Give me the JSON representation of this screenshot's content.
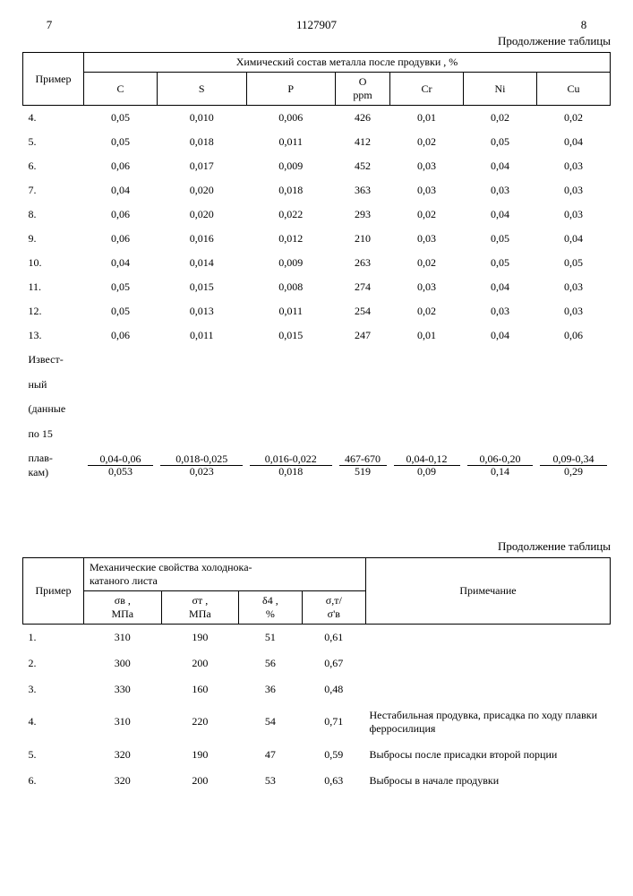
{
  "doc": {
    "page_left": "7",
    "doc_number": "1127907",
    "page_right": "8",
    "continuation": "Продолжение таблицы"
  },
  "table1": {
    "col_primer": "Пример",
    "group_header": "Химический состав металла после продувки , %",
    "cols": {
      "c": "C",
      "s": "S",
      "p": "P",
      "o": "O\nppm",
      "cr": "Cr",
      "ni": "Ni",
      "cu": "Cu"
    },
    "rows": [
      {
        "label": "4.",
        "c": "0,05",
        "s": "0,010",
        "p": "0,006",
        "o": "426",
        "cr": "0,01",
        "ni": "0,02",
        "cu": "0,02"
      },
      {
        "label": "5.",
        "c": "0,05",
        "s": "0,018",
        "p": "0,011",
        "o": "412",
        "cr": "0,02",
        "ni": "0,05",
        "cu": "0,04"
      },
      {
        "label": "6.",
        "c": "0,06",
        "s": "0,017",
        "p": "0,009",
        "o": "452",
        "cr": "0,03",
        "ni": "0,04",
        "cu": "0,03"
      },
      {
        "label": "7.",
        "c": "0,04",
        "s": "0,020",
        "p": "0,018",
        "o": "363",
        "cr": "0,03",
        "ni": "0,03",
        "cu": "0,03"
      },
      {
        "label": "8.",
        "c": "0,06",
        "s": "0,020",
        "p": "0,022",
        "o": "293",
        "cr": "0,02",
        "ni": "0,04",
        "cu": "0,03"
      },
      {
        "label": "9.",
        "c": "0,06",
        "s": "0,016",
        "p": "0,012",
        "o": "210",
        "cr": "0,03",
        "ni": "0,05",
        "cu": "0,04"
      },
      {
        "label": "10.",
        "c": "0,04",
        "s": "0,014",
        "p": "0,009",
        "o": "263",
        "cr": "0,02",
        "ni": "0,05",
        "cu": "0,05"
      },
      {
        "label": "11.",
        "c": "0,05",
        "s": "0,015",
        "p": "0,008",
        "o": "274",
        "cr": "0,03",
        "ni": "0,04",
        "cu": "0,03"
      },
      {
        "label": "12.",
        "c": "0,05",
        "s": "0,013",
        "p": "0,011",
        "o": "254",
        "cr": "0,02",
        "ni": "0,03",
        "cu": "0,03"
      },
      {
        "label": "13.",
        "c": "0,06",
        "s": "0,011",
        "p": "0,015",
        "o": "247",
        "cr": "0,01",
        "ni": "0,04",
        "cu": "0,06"
      }
    ],
    "known_label_1": "Извест-",
    "known_label_2": "ный",
    "known_label_3": "(данные",
    "known_label_4": "по 15",
    "known_label_5": "плав-",
    "known_label_6": "кам)",
    "frac": {
      "c_top": "0,04-0,06",
      "c_bot": "0,053",
      "s_top": "0,018-0,025",
      "s_bot": "0,023",
      "p_top": "0,016-0,022",
      "p_bot": "0,018",
      "o_top": "467-670",
      "o_bot": "519",
      "cr_top": "0,04-0,12",
      "cr_bot": "0,09",
      "ni_top": "0,06-0,20",
      "ni_bot": "0,14",
      "cu_top": "0,09-0,34",
      "cu_bot": "0,29"
    }
  },
  "table2": {
    "continuation": "Продолжение таблицы",
    "col_primer": "Пример",
    "group_header": "Механические свойства холоднока-\nкатаного листа",
    "col_note": "Примечание",
    "cols": {
      "sb": "σв ,\nМПа",
      "st": "σт ,\nМПа",
      "d4": "δ4 ,\n%",
      "ratio": "σ,т/\nσ'в"
    },
    "rows": [
      {
        "label": "1.",
        "sb": "310",
        "st": "190",
        "d4": "51",
        "ratio": "0,61",
        "note": ""
      },
      {
        "label": "2.",
        "sb": "300",
        "st": "200",
        "d4": "56",
        "ratio": "0,67",
        "note": ""
      },
      {
        "label": "3.",
        "sb": "330",
        "st": "160",
        "d4": "36",
        "ratio": "0,48",
        "note": ""
      },
      {
        "label": "4.",
        "sb": "310",
        "st": "220",
        "d4": "54",
        "ratio": "0,71",
        "note": "Нестабильная продувка, присадка по ходу плавки ферросилиция"
      },
      {
        "label": "5.",
        "sb": "320",
        "st": "190",
        "d4": "47",
        "ratio": "0,59",
        "note": "Выбросы после присадки второй порции"
      },
      {
        "label": "6.",
        "sb": "320",
        "st": "200",
        "d4": "53",
        "ratio": "0,63",
        "note": "Выбросы в начале продувки"
      }
    ]
  }
}
